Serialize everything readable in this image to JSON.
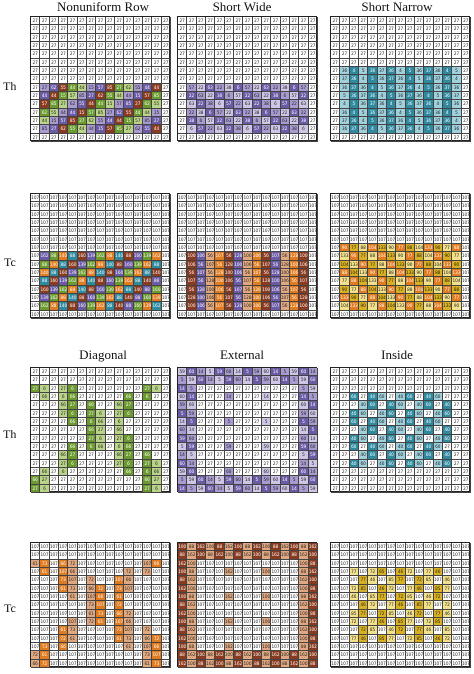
{
  "column_titles_top": [
    "Nonuniform Row",
    "Short Wide",
    "Short Narrow"
  ],
  "column_titles_bottom": [
    "Diagonal",
    "External",
    "Inside"
  ],
  "row_labels": [
    "Th",
    "Tc",
    "Th",
    "Tc"
  ],
  "grid_size": {
    "rows": 15,
    "cols": 15
  },
  "colors": {
    "base": "#ffffff",
    "purple": "#6b5ba6",
    "lavender": "#a99bd0",
    "green": "#6b9b2e",
    "light_green": "#b9d488",
    "teal": "#2f8aa0",
    "light_teal": "#9fd0dc",
    "orange": "#e07b20",
    "brown": "#8a3a1e",
    "salmon": "#e0a880",
    "gold": "#d9b020",
    "light_gold": "#f3e08a",
    "light_purple": "#cfc6e6"
  },
  "panels": [
    {
      "id": "nonuniform-row-th",
      "base": 27,
      "hot_rows": [
        8,
        9,
        10,
        11,
        12,
        13
      ],
      "values": [
        85,
        44,
        62,
        57,
        44,
        27,
        15,
        55
      ],
      "palette": [
        "purple",
        "green",
        "lavender",
        "brown",
        "light_green"
      ]
    },
    {
      "id": "short-wide-th",
      "base": 27,
      "hot_rows": [
        8,
        9,
        10,
        11,
        12,
        13
      ],
      "values": [
        38,
        6,
        57,
        22,
        63,
        22
      ],
      "palette": [
        "purple",
        "lavender",
        "light_purple"
      ]
    },
    {
      "id": "short-narrow-th",
      "base": 27,
      "hot_rows": [
        6,
        7,
        8,
        9,
        10,
        11,
        12,
        13
      ],
      "values": [
        36,
        5,
        37,
        4,
        36
      ],
      "palette": [
        "teal",
        "light_teal"
      ]
    },
    {
      "id": "nonuniform-row-tc",
      "base": 107,
      "hot_rows": [
        7,
        8,
        9,
        10,
        11,
        12,
        13
      ],
      "values": [
        88,
        140,
        88,
        160,
        139,
        162
      ],
      "palette": [
        "orange",
        "brown",
        "green",
        "teal",
        "purple"
      ]
    },
    {
      "id": "short-wide-tc",
      "base": 107,
      "hot_rows": [
        7,
        8,
        9,
        10,
        11,
        12,
        13
      ],
      "values": [
        56,
        107,
        56,
        128,
        100,
        106
      ],
      "palette": [
        "orange",
        "brown",
        "purple",
        "salmon"
      ]
    },
    {
      "id": "short-narrow-tc",
      "base": 107,
      "hot_rows": [
        6,
        7,
        8,
        9,
        10,
        11,
        12,
        13
      ],
      "values": [
        90,
        88,
        133,
        77,
        104
      ],
      "palette": [
        "gold",
        "light_gold",
        "orange"
      ]
    },
    {
      "id": "diagonal-th",
      "base": 27,
      "hot_rows": [],
      "values": [
        6,
        66,
        27
      ],
      "palette": [
        "green",
        "light_green"
      ]
    },
    {
      "id": "external-th",
      "base": 27,
      "hot_rows": [],
      "values": [
        60,
        14,
        5,
        59
      ],
      "palette": [
        "purple",
        "lavender",
        "light_purple"
      ]
    },
    {
      "id": "inside-th",
      "base": 27,
      "hot_rows": [],
      "values": [
        60,
        46,
        40
      ],
      "palette": [
        "teal",
        "light_teal"
      ]
    },
    {
      "id": "diagonal-tc",
      "base": 107,
      "hot_rows": [],
      "values": [
        107,
        72,
        73,
        66,
        61
      ],
      "palette": [
        "orange",
        "salmon"
      ]
    },
    {
      "id": "external-tc",
      "base": 107,
      "hot_rows": [],
      "values": [
        88,
        162,
        100
      ],
      "palette": [
        "brown",
        "salmon"
      ]
    },
    {
      "id": "inside-tc",
      "base": 107,
      "hot_rows": [],
      "values": [
        72,
        85,
        77,
        46
      ],
      "palette": [
        "gold",
        "light_gold"
      ]
    }
  ]
}
